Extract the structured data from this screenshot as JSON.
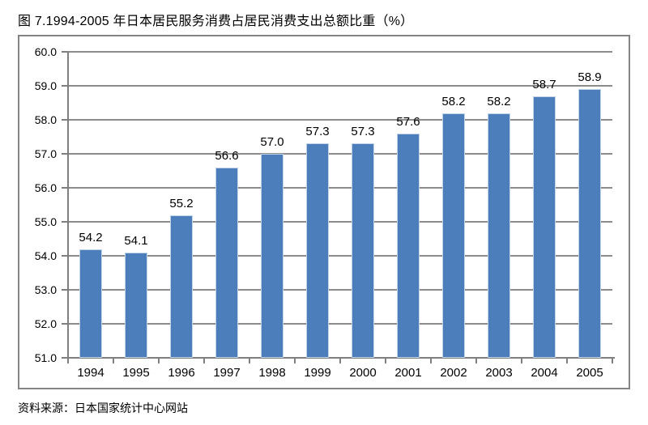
{
  "title": "图 7.1994-2005 年日本居民服务消费占居民消费支出总额比重（%）",
  "source": "资料来源：日本国家统计中心网站",
  "chart_data": {
    "type": "bar",
    "title": "图 7.1994-2005 年日本居民服务消费占居民消费支出总额比重（%）",
    "categories": [
      "1994",
      "1995",
      "1996",
      "1997",
      "1998",
      "1999",
      "2000",
      "2001",
      "2002",
      "2003",
      "2004",
      "2005"
    ],
    "values": [
      54.2,
      54.1,
      55.2,
      56.6,
      57.0,
      57.3,
      57.3,
      57.6,
      58.2,
      58.2,
      58.7,
      58.9
    ],
    "value_labels": [
      "54.2",
      "54.1",
      "55.2",
      "56.6",
      "57.0",
      "57.3",
      "57.3",
      "57.6",
      "58.2",
      "58.2",
      "58.7",
      "58.9"
    ],
    "xlabel": "",
    "ylabel": "",
    "ylim": [
      51.0,
      60.0
    ],
    "ytick_step": 1.0,
    "ytick_labels": [
      "51.0",
      "52.0",
      "53.0",
      "54.0",
      "55.0",
      "56.0",
      "57.0",
      "58.0",
      "59.0",
      "60.0"
    ],
    "grid": true,
    "legend": false,
    "colors": {
      "bar_fill": "#4d7ebc",
      "bar_border": "#c3d4e8",
      "gridline": "#8c8c8c",
      "axis_line": "#7f7f7f",
      "frame_border": "#848484",
      "text": "#000000",
      "background": "#ffffff"
    }
  }
}
